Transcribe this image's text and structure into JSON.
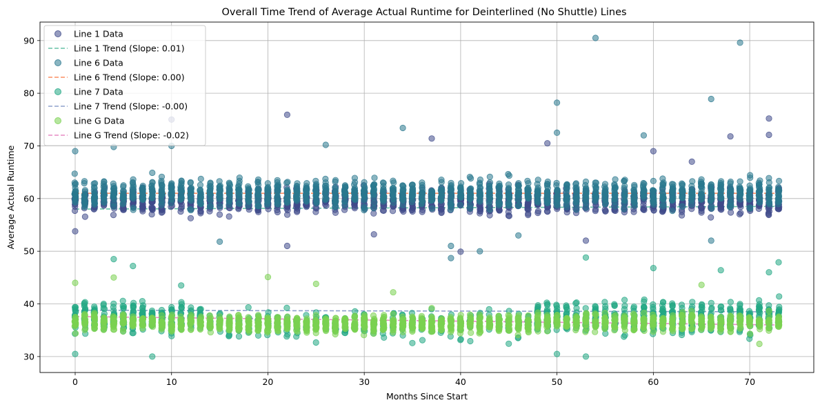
{
  "chart_data": {
    "type": "scatter",
    "title": "Overall Time Trend of Average Actual Runtime for Deinterlined (No Shuttle) Lines",
    "xlabel": "Months Since Start",
    "ylabel": "Average Actual Runtime",
    "xlim": [
      -3.65,
      76.65
    ],
    "ylim": [
      26.97,
      93.51
    ],
    "xticks": [
      0,
      10,
      20,
      30,
      40,
      50,
      60,
      70
    ],
    "yticks": [
      30,
      40,
      50,
      60,
      70,
      80,
      90
    ],
    "grid": true,
    "legend_position": "top-left",
    "months": [
      0,
      73
    ],
    "series": [
      {
        "name": "Line 1 Data",
        "kind": "points",
        "color": "#3f4a8a",
        "typical_range": [
          56,
          63
        ],
        "notable_points": [
          [
            0,
            53.8
          ],
          [
            10,
            75.0
          ],
          [
            22,
            75.9
          ],
          [
            22,
            51.0
          ],
          [
            31,
            53.2
          ],
          [
            37,
            71.4
          ],
          [
            40,
            49.9
          ],
          [
            49,
            70.5
          ],
          [
            53,
            52.0
          ],
          [
            60,
            69.0
          ],
          [
            64,
            67.0
          ],
          [
            68,
            71.8
          ],
          [
            72,
            75.2
          ],
          [
            72,
            72.1
          ]
        ]
      },
      {
        "name": "Line 1 Trend (Slope: 0.01)",
        "kind": "trend",
        "color": "#66c2a5",
        "y_start": 58.0,
        "y_end": 58.5
      },
      {
        "name": "Line 6 Data",
        "kind": "points",
        "color": "#2a788e",
        "typical_range": [
          57,
          65
        ],
        "notable_points": [
          [
            0,
            69.0
          ],
          [
            4,
            69.8
          ],
          [
            10,
            70.0
          ],
          [
            15,
            51.8
          ],
          [
            26,
            70.2
          ],
          [
            34,
            73.4
          ],
          [
            39,
            48.7
          ],
          [
            39,
            51.0
          ],
          [
            42,
            50.0
          ],
          [
            46,
            53.0
          ],
          [
            50,
            78.2
          ],
          [
            50,
            72.5
          ],
          [
            54,
            90.5
          ],
          [
            59,
            72.0
          ],
          [
            66,
            78.9
          ],
          [
            66,
            52.0
          ],
          [
            69,
            89.6
          ]
        ]
      },
      {
        "name": "Line 6 Trend (Slope: 0.00)",
        "kind": "trend",
        "color": "#fc8d62",
        "y_start": 61.0,
        "y_end": 61.0
      },
      {
        "name": "Line 7 Data",
        "kind": "points",
        "color": "#22a884",
        "typical_range": [
          33,
          42
        ],
        "notable_points": [
          [
            0,
            30.5
          ],
          [
            4,
            48.5
          ],
          [
            6,
            47.2
          ],
          [
            8,
            30.0
          ],
          [
            11,
            43.5
          ],
          [
            50,
            30.5
          ],
          [
            53,
            30.0
          ],
          [
            53,
            48.8
          ],
          [
            60,
            46.8
          ],
          [
            67,
            46.4
          ],
          [
            72,
            46.0
          ],
          [
            73,
            47.9
          ]
        ]
      },
      {
        "name": "Line 7 Trend (Slope: -0.00)",
        "kind": "trend",
        "color": "#8da0cb",
        "y_start": 38.8,
        "y_end": 38.5
      },
      {
        "name": "Line G Data",
        "kind": "points",
        "color": "#7ad151",
        "typical_range": [
          34,
          39
        ],
        "notable_points": [
          [
            0,
            44.0
          ],
          [
            4,
            45.0
          ],
          [
            20,
            45.1
          ],
          [
            25,
            43.8
          ],
          [
            33,
            42.2
          ],
          [
            37,
            39.2
          ],
          [
            65,
            43.6
          ],
          [
            71,
            32.4
          ]
        ]
      },
      {
        "name": "Line G Trend (Slope: -0.02)",
        "kind": "trend",
        "color": "#e78ac3",
        "y_start": 37.6,
        "y_end": 36.0
      }
    ]
  }
}
